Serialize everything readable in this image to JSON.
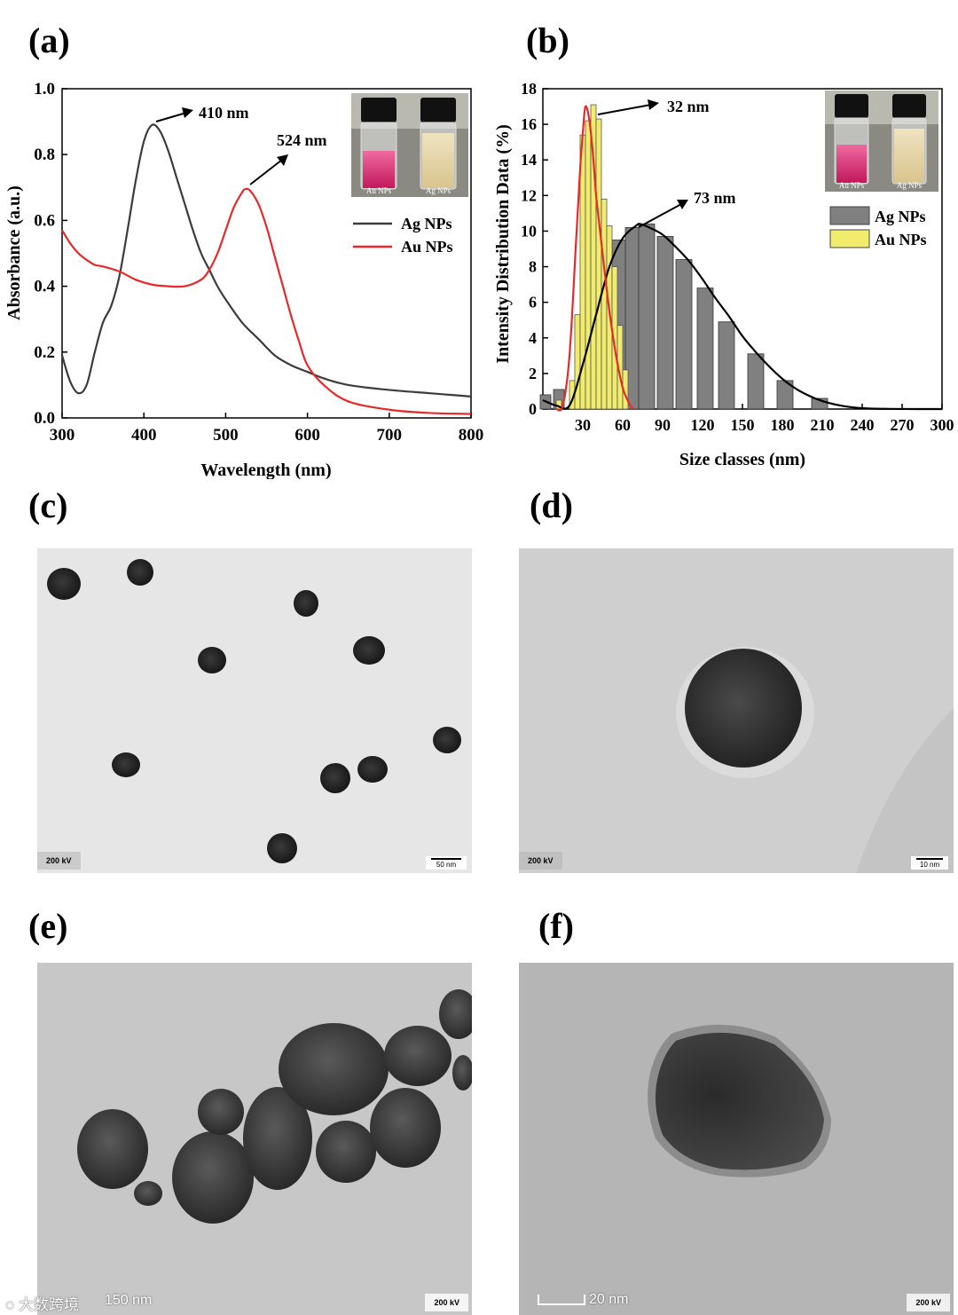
{
  "panels": {
    "a": {
      "label": "(a)"
    },
    "b": {
      "label": "(b)"
    },
    "c": {
      "label": "(c)",
      "voltage": "200 kV",
      "scale": "50 nm"
    },
    "d": {
      "label": "(d)",
      "voltage": "200 kV",
      "scale": "10 nm"
    },
    "e": {
      "label": "(e)",
      "voltage": "200 kV",
      "scale": "50 nm",
      "scale_prefix": "1"
    },
    "f": {
      "label": "(f)",
      "voltage": "200 kV",
      "scale": "20 nm"
    }
  },
  "watermark": "大数跨境",
  "inset": {
    "vial1": "Au NPs",
    "vial2": "Ag NPs"
  },
  "colors": {
    "ag": "#3c3c3c",
    "au": "#e8292b",
    "ag_bar": "#808080",
    "au_bar": "#f2ec6e"
  },
  "chart_data": [
    {
      "type": "line",
      "xlabel": "Wavelength (nm)",
      "ylabel": "Absorbance (a.u.)",
      "xlim": [
        300,
        800
      ],
      "ylim": [
        0,
        1.0
      ],
      "xticks": [
        "300",
        "400",
        "500",
        "600",
        "700",
        "800"
      ],
      "yticks": [
        "0.0",
        "0.2",
        "0.4",
        "0.6",
        "0.8",
        "1.0"
      ],
      "legend_position": "right",
      "annotations": [
        "410 nm",
        "524 nm"
      ],
      "series": [
        {
          "name": "Ag NPs",
          "x": [
            300,
            310,
            320,
            330,
            340,
            350,
            360,
            370,
            380,
            390,
            400,
            410,
            420,
            430,
            440,
            450,
            460,
            470,
            480,
            490,
            500,
            520,
            540,
            560,
            580,
            600,
            620,
            650,
            700,
            750,
            800
          ],
          "y": [
            0.19,
            0.11,
            0.075,
            0.1,
            0.2,
            0.29,
            0.34,
            0.43,
            0.57,
            0.72,
            0.84,
            0.89,
            0.87,
            0.81,
            0.73,
            0.65,
            0.57,
            0.5,
            0.45,
            0.4,
            0.36,
            0.29,
            0.24,
            0.19,
            0.16,
            0.14,
            0.12,
            0.1,
            0.085,
            0.075,
            0.065
          ]
        },
        {
          "name": "Au NPs",
          "x": [
            300,
            310,
            320,
            330,
            340,
            350,
            370,
            390,
            410,
            430,
            450,
            470,
            480,
            490,
            500,
            510,
            520,
            524,
            530,
            540,
            550,
            560,
            570,
            580,
            590,
            600,
            620,
            650,
            700,
            750,
            800
          ],
          "y": [
            0.57,
            0.53,
            0.5,
            0.48,
            0.465,
            0.46,
            0.445,
            0.42,
            0.405,
            0.4,
            0.4,
            0.42,
            0.45,
            0.5,
            0.57,
            0.64,
            0.685,
            0.695,
            0.69,
            0.65,
            0.58,
            0.49,
            0.4,
            0.31,
            0.23,
            0.16,
            0.1,
            0.05,
            0.025,
            0.015,
            0.012
          ]
        }
      ]
    },
    {
      "type": "bar",
      "xlabel": "Size classes (nm)",
      "ylabel": "Intensity Distribution Data (%)",
      "xlim": [
        0,
        300
      ],
      "ylim": [
        0,
        18
      ],
      "xticks": [
        "30",
        "60",
        "90",
        "120",
        "150",
        "180",
        "210",
        "240",
        "270",
        "300"
      ],
      "yticks": [
        "0",
        "2",
        "4",
        "6",
        "8",
        "10",
        "12",
        "14",
        "16",
        "18"
      ],
      "legend_position": "right",
      "annotations": [
        "32 nm",
        "73 nm"
      ],
      "series": [
        {
          "name": "Ag NPs",
          "x": [
            2,
            12,
            58,
            68,
            78,
            92,
            106,
            122,
            138,
            160,
            182,
            208
          ],
          "y": [
            0.8,
            1.1,
            9.5,
            10.2,
            10.4,
            9.7,
            8.4,
            6.8,
            4.9,
            3.1,
            1.6,
            0.6
          ]
        },
        {
          "name": "Au NPs",
          "x": [
            12,
            22,
            26,
            30,
            34,
            38,
            42,
            46,
            50,
            54,
            58,
            62
          ],
          "y": [
            0.5,
            1.6,
            5.3,
            15.4,
            16.2,
            17.1,
            16.3,
            11.8,
            10.3,
            8.0,
            4.7,
            2.2
          ]
        }
      ],
      "fits": [
        {
          "series": "Ag NPs",
          "x": [
            0,
            10,
            20,
            30,
            40,
            50,
            60,
            70,
            73,
            80,
            90,
            100,
            110,
            120,
            130,
            140,
            150,
            160,
            170,
            180,
            190,
            200,
            210,
            220,
            230,
            240,
            250,
            260,
            280,
            300
          ],
          "y": [
            0.5,
            0.2,
            0.2,
            2.5,
            5.3,
            8.0,
            9.6,
            10.3,
            10.4,
            10.2,
            9.8,
            9.1,
            8.3,
            7.3,
            6.2,
            5.2,
            4.1,
            3.2,
            2.4,
            1.7,
            1.15,
            0.75,
            0.45,
            0.25,
            0.12,
            0.05,
            0.02,
            0.01,
            0,
            0
          ]
        },
        {
          "series": "Au NPs",
          "x": [
            10,
            15,
            20,
            25,
            28,
            30,
            32,
            35,
            38,
            40,
            43,
            46,
            50,
            55,
            60,
            65,
            68
          ],
          "y": [
            0,
            0.2,
            3.0,
            9.5,
            13.5,
            15.5,
            17.0,
            16.2,
            14.0,
            12.0,
            10.0,
            8.0,
            5.5,
            3.0,
            1.2,
            0.3,
            0
          ]
        }
      ]
    }
  ]
}
